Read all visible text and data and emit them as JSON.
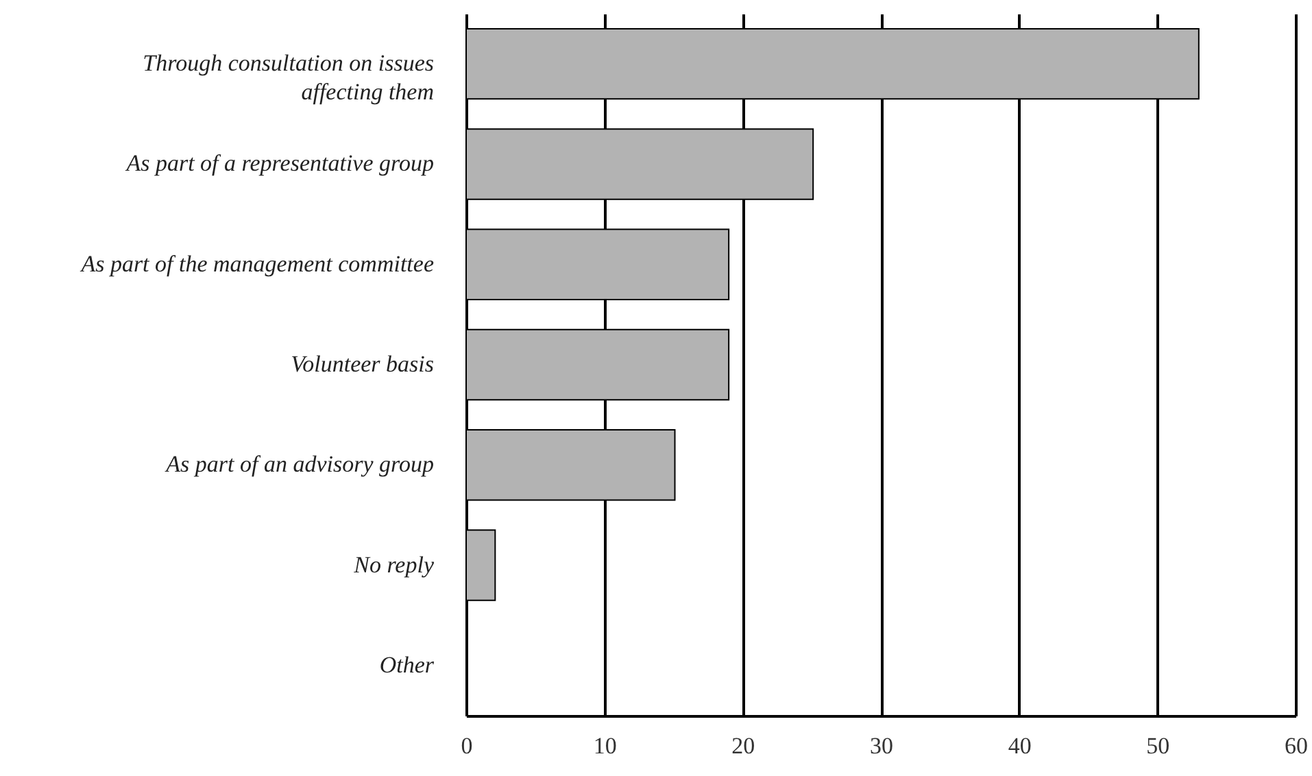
{
  "chart_data": {
    "type": "bar",
    "orientation": "horizontal",
    "categories": [
      "Through consultation on issues affecting them",
      "As part of a representative group",
      "As part of the management committee",
      "Volunteer basis",
      "As part of an advisory group",
      "No reply",
      "Other"
    ],
    "values": [
      53,
      25.1,
      19,
      19,
      15.1,
      2.1,
      0
    ],
    "color": "#b3b3b3",
    "xlim": [
      0,
      60
    ],
    "xticks": [
      0,
      10,
      20,
      30,
      40,
      50,
      60
    ],
    "grid": "x"
  }
}
